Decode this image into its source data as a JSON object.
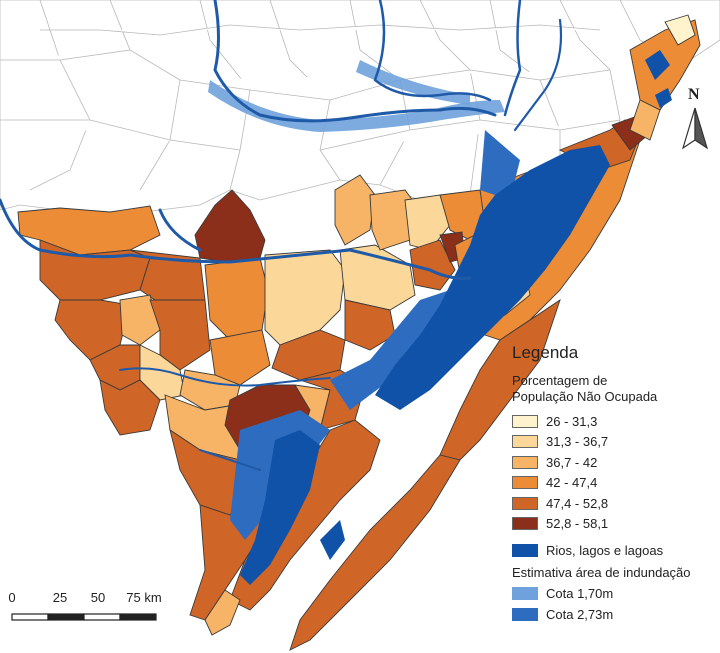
{
  "legend": {
    "title": "Legenda",
    "subtitle_line1": "Porcentagem de",
    "subtitle_line2": "População Não Ocupada",
    "classes": [
      {
        "label": "26 - 31,3",
        "color": "#fef3cc"
      },
      {
        "label": "31,3 - 36,7",
        "color": "#fcd79a"
      },
      {
        "label": "36,7 - 42",
        "color": "#f7b466"
      },
      {
        "label": "42 - 47,4",
        "color": "#ec8c36"
      },
      {
        "label": "47,4 - 52,8",
        "color": "#cf6527"
      },
      {
        "label": "52,8 - 58,1",
        "color": "#8c2f1a"
      }
    ],
    "water_label": "Rios, lagos e lagoas",
    "water_color": "#0f52a8",
    "flood_heading": "Estimativa área de indundação",
    "flood_classes": [
      {
        "label": "Cota 1,70m",
        "color": "#6fa2dc"
      },
      {
        "label": "Cota 2,73m",
        "color": "#2e6cc0"
      }
    ]
  },
  "north_arrow": {
    "label": "N",
    "icon": "north-arrow-icon"
  },
  "scale_bar": {
    "labels": [
      "0",
      "25",
      "50",
      "75 km"
    ]
  }
}
